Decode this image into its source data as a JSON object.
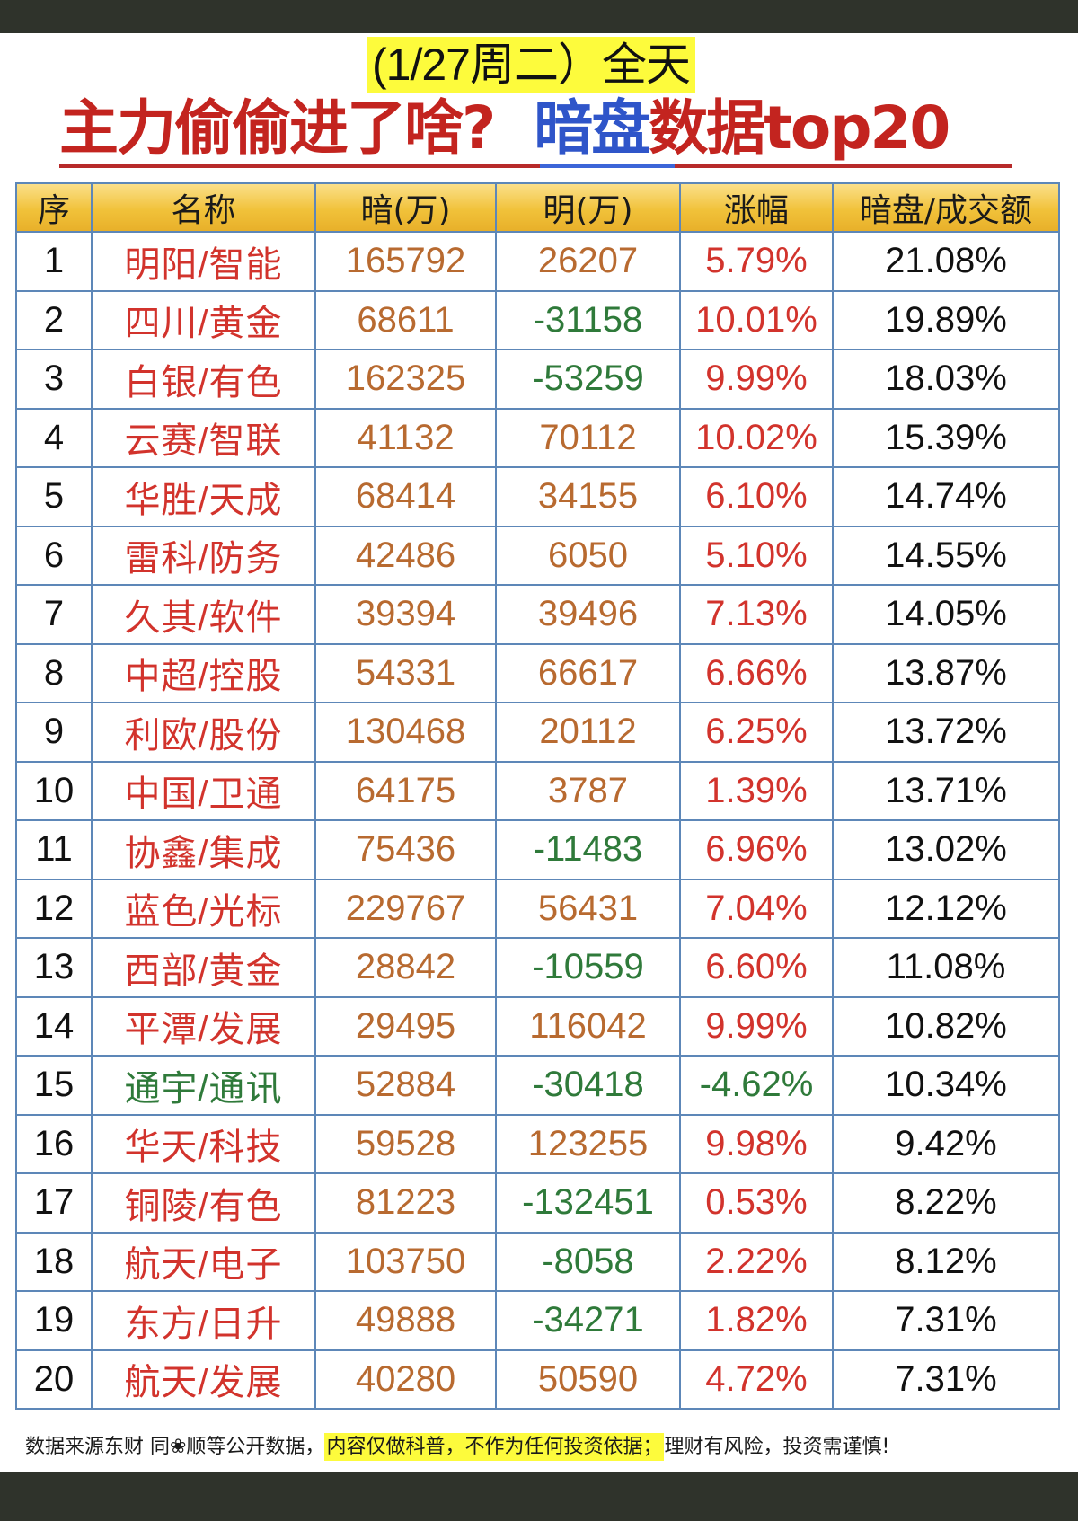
{
  "header": {
    "subtitle": "(1/27周二）全天",
    "title_part1": "主力偷偷进了啥?",
    "title_part2_blue": "暗盘",
    "title_part3": "数据top20",
    "colors": {
      "title_red": "#c3241f",
      "title_blue": "#2f55c9",
      "highlight_yellow": "#fdfb3c"
    }
  },
  "table": {
    "columns": [
      "序",
      "名称",
      "暗(万)",
      "明(万)",
      "涨幅",
      "暗盘/成交额"
    ],
    "rows": [
      {
        "idx": "1",
        "name": "明阳/智能",
        "an": "165792",
        "ming": "26207",
        "change": "5.79%",
        "ratio": "21.08%",
        "name_color": "red",
        "ming_color": "orange",
        "change_color": "red"
      },
      {
        "idx": "2",
        "name": "四川/黄金",
        "an": "68611",
        "ming": "-31158",
        "change": "10.01%",
        "ratio": "19.89%",
        "name_color": "red",
        "ming_color": "green",
        "change_color": "red"
      },
      {
        "idx": "3",
        "name": "白银/有色",
        "an": "162325",
        "ming": "-53259",
        "change": "9.99%",
        "ratio": "18.03%",
        "name_color": "red",
        "ming_color": "green",
        "change_color": "red"
      },
      {
        "idx": "4",
        "name": "云赛/智联",
        "an": "41132",
        "ming": "70112",
        "change": "10.02%",
        "ratio": "15.39%",
        "name_color": "red",
        "ming_color": "orange",
        "change_color": "red"
      },
      {
        "idx": "5",
        "name": "华胜/天成",
        "an": "68414",
        "ming": "34155",
        "change": "6.10%",
        "ratio": "14.74%",
        "name_color": "red",
        "ming_color": "orange",
        "change_color": "red"
      },
      {
        "idx": "6",
        "name": "雷科/防务",
        "an": "42486",
        "ming": "6050",
        "change": "5.10%",
        "ratio": "14.55%",
        "name_color": "red",
        "ming_color": "orange",
        "change_color": "red"
      },
      {
        "idx": "7",
        "name": "久其/软件",
        "an": "39394",
        "ming": "39496",
        "change": "7.13%",
        "ratio": "14.05%",
        "name_color": "red",
        "ming_color": "orange",
        "change_color": "red"
      },
      {
        "idx": "8",
        "name": "中超/控股",
        "an": "54331",
        "ming": "66617",
        "change": "6.66%",
        "ratio": "13.87%",
        "name_color": "red",
        "ming_color": "orange",
        "change_color": "red"
      },
      {
        "idx": "9",
        "name": "利欧/股份",
        "an": "130468",
        "ming": "20112",
        "change": "6.25%",
        "ratio": "13.72%",
        "name_color": "red",
        "ming_color": "orange",
        "change_color": "red"
      },
      {
        "idx": "10",
        "name": "中国/卫通",
        "an": "64175",
        "ming": "3787",
        "change": "1.39%",
        "ratio": "13.71%",
        "name_color": "red",
        "ming_color": "orange",
        "change_color": "red"
      },
      {
        "idx": "11",
        "name": "协鑫/集成",
        "an": "75436",
        "ming": "-11483",
        "change": "6.96%",
        "ratio": "13.02%",
        "name_color": "red",
        "ming_color": "green",
        "change_color": "red"
      },
      {
        "idx": "12",
        "name": "蓝色/光标",
        "an": "229767",
        "ming": "56431",
        "change": "7.04%",
        "ratio": "12.12%",
        "name_color": "red",
        "ming_color": "orange",
        "change_color": "red"
      },
      {
        "idx": "13",
        "name": "西部/黄金",
        "an": "28842",
        "ming": "-10559",
        "change": "6.60%",
        "ratio": "11.08%",
        "name_color": "red",
        "ming_color": "green",
        "change_color": "red"
      },
      {
        "idx": "14",
        "name": "平潭/发展",
        "an": "29495",
        "ming": "116042",
        "change": "9.99%",
        "ratio": "10.82%",
        "name_color": "red",
        "ming_color": "orange",
        "change_color": "red"
      },
      {
        "idx": "15",
        "name": "通宇/通讯",
        "an": "52884",
        "ming": "-30418",
        "change": "-4.62%",
        "ratio": "10.34%",
        "name_color": "green",
        "ming_color": "green",
        "change_color": "green"
      },
      {
        "idx": "16",
        "name": "华天/科技",
        "an": "59528",
        "ming": "123255",
        "change": "9.98%",
        "ratio": "9.42%",
        "name_color": "red",
        "ming_color": "orange",
        "change_color": "red"
      },
      {
        "idx": "17",
        "name": "铜陵/有色",
        "an": "81223",
        "ming": "-132451",
        "change": "0.53%",
        "ratio": "8.22%",
        "name_color": "red",
        "ming_color": "green",
        "change_color": "red"
      },
      {
        "idx": "18",
        "name": "航天/电子",
        "an": "103750",
        "ming": "-8058",
        "change": "2.22%",
        "ratio": "8.12%",
        "name_color": "red",
        "ming_color": "green",
        "change_color": "red"
      },
      {
        "idx": "19",
        "name": "东方/日升",
        "an": "49888",
        "ming": "-34271",
        "change": "1.82%",
        "ratio": "7.31%",
        "name_color": "red",
        "ming_color": "green",
        "change_color": "red"
      },
      {
        "idx": "20",
        "name": "航天/发展",
        "an": "40280",
        "ming": "50590",
        "change": "4.72%",
        "ratio": "7.31%",
        "name_color": "red",
        "ming_color": "orange",
        "change_color": "red"
      }
    ],
    "colors": {
      "red": "#d2332c",
      "green": "#2f7a3a",
      "orange": "#b86a30",
      "black": "#111111",
      "border": "#5d87b8",
      "header_bg": "#f1c23a",
      "index_bg": "#f0c7e0"
    }
  },
  "footer": {
    "text_before": "数据来源东财 同❀顺等公开数据，",
    "text_highlighted": "内容仅做科普，不作为任何投资依据；",
    "text_after": "理财有风险，投资需谨慎!"
  }
}
